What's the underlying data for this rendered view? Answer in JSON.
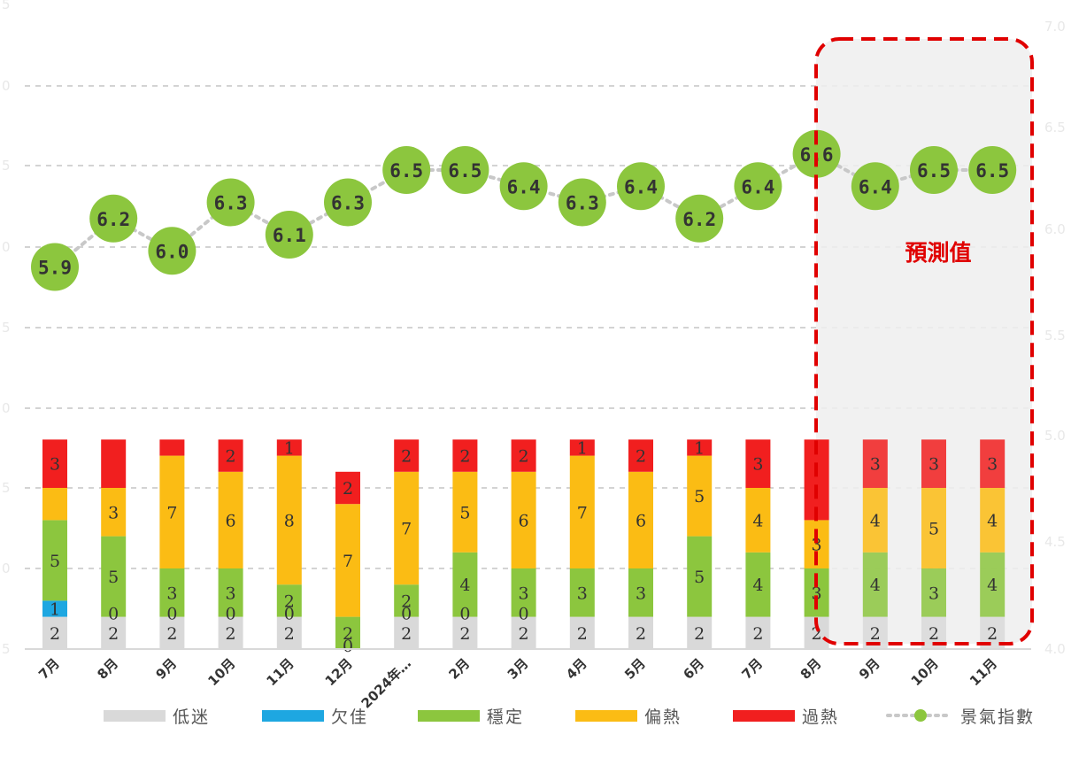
{
  "chart_data": {
    "type": "bar+line",
    "categories": [
      "7月",
      "8月",
      "9月",
      "10月",
      "11月",
      "12月",
      "2024年…",
      "2月",
      "3月",
      "4月",
      "5月",
      "6月",
      "7月",
      "8月",
      "9月",
      "10月",
      "11月"
    ],
    "series": [
      {
        "name": "低迷",
        "color": "#d9d9d9",
        "values": [
          2,
          2,
          2,
          2,
          2,
          0,
          2,
          2,
          2,
          2,
          2,
          2,
          2,
          2,
          2,
          2,
          2
        ]
      },
      {
        "name": "欠佳",
        "color": "#1ea7e1",
        "values": [
          1,
          0,
          0,
          0,
          0,
          0,
          0,
          0,
          0,
          0,
          0,
          0,
          0,
          0,
          0,
          0,
          0
        ]
      },
      {
        "name": "穩定",
        "color": "#8cc63e",
        "values": [
          5,
          5,
          3,
          3,
          2,
          2,
          2,
          4,
          3,
          3,
          3,
          5,
          4,
          3,
          4,
          3,
          4
        ]
      },
      {
        "name": "偏熱",
        "color": "#fbbc14",
        "values": [
          2,
          3,
          7,
          6,
          8,
          7,
          7,
          5,
          6,
          7,
          6,
          5,
          4,
          3,
          4,
          5,
          4
        ]
      },
      {
        "name": "過熱",
        "color": "#f11f1f",
        "values": [
          3,
          3,
          1,
          2,
          1,
          2,
          2,
          2,
          2,
          1,
          2,
          1,
          3,
          5,
          3,
          3,
          3
        ]
      }
    ],
    "segment_labels": {
      "低迷": [
        "2",
        "2",
        "2",
        "2",
        "2",
        "0",
        "2",
        "2",
        "2",
        "2",
        "2",
        "2",
        "2",
        "2",
        "2",
        "2",
        "2"
      ],
      "欠佳": [
        "1",
        "0",
        "0",
        "0",
        "0",
        "",
        "0",
        "0",
        "0",
        "",
        "",
        "",
        "",
        "",
        "",
        "",
        ""
      ],
      "穩定": [
        "5",
        "5",
        "3",
        "3",
        "2",
        "2",
        "2",
        "4",
        "3",
        "3",
        "3",
        "5",
        "4",
        "3",
        "4",
        "3",
        "4"
      ],
      "偏熱": [
        "",
        "3",
        "7",
        "6",
        "8",
        "7",
        "7",
        "5",
        "6",
        "7",
        "6",
        "5",
        "4",
        "3",
        "4",
        "5",
        "4"
      ],
      "過熱": [
        "3",
        "",
        "",
        "2",
        "1",
        "2",
        "2",
        "2",
        "2",
        "1",
        "2",
        "1",
        "3",
        "",
        "3",
        "3",
        "3"
      ]
    },
    "line": {
      "name": "景氣指數",
      "color": "#8cc63e",
      "values": [
        5.9,
        6.2,
        6.0,
        6.3,
        6.1,
        6.3,
        6.5,
        6.5,
        6.4,
        6.3,
        6.4,
        6.2,
        6.4,
        6.6,
        6.4,
        6.5,
        6.5
      ],
      "labels": [
        "5.9",
        "6.2",
        "6.0",
        "6.3",
        "6.1",
        "6.3",
        "6.5",
        "6.5",
        "6.4",
        "6.3",
        "6.4",
        "6.2",
        "6.4",
        "6.6",
        "6.4",
        "6.5",
        "6.5"
      ]
    },
    "forecast_label": "預測值",
    "forecast_start_index": 14,
    "left_axis_ticks": [
      "5",
      "0",
      "5",
      "0",
      "5",
      "0",
      "5",
      "0",
      "5"
    ],
    "right_axis_ticks": [
      "7.0",
      "6.5",
      "6.0",
      "5.5",
      "5.0",
      "4.5",
      "4.0"
    ],
    "legend_position": "bottom",
    "grid": true
  }
}
